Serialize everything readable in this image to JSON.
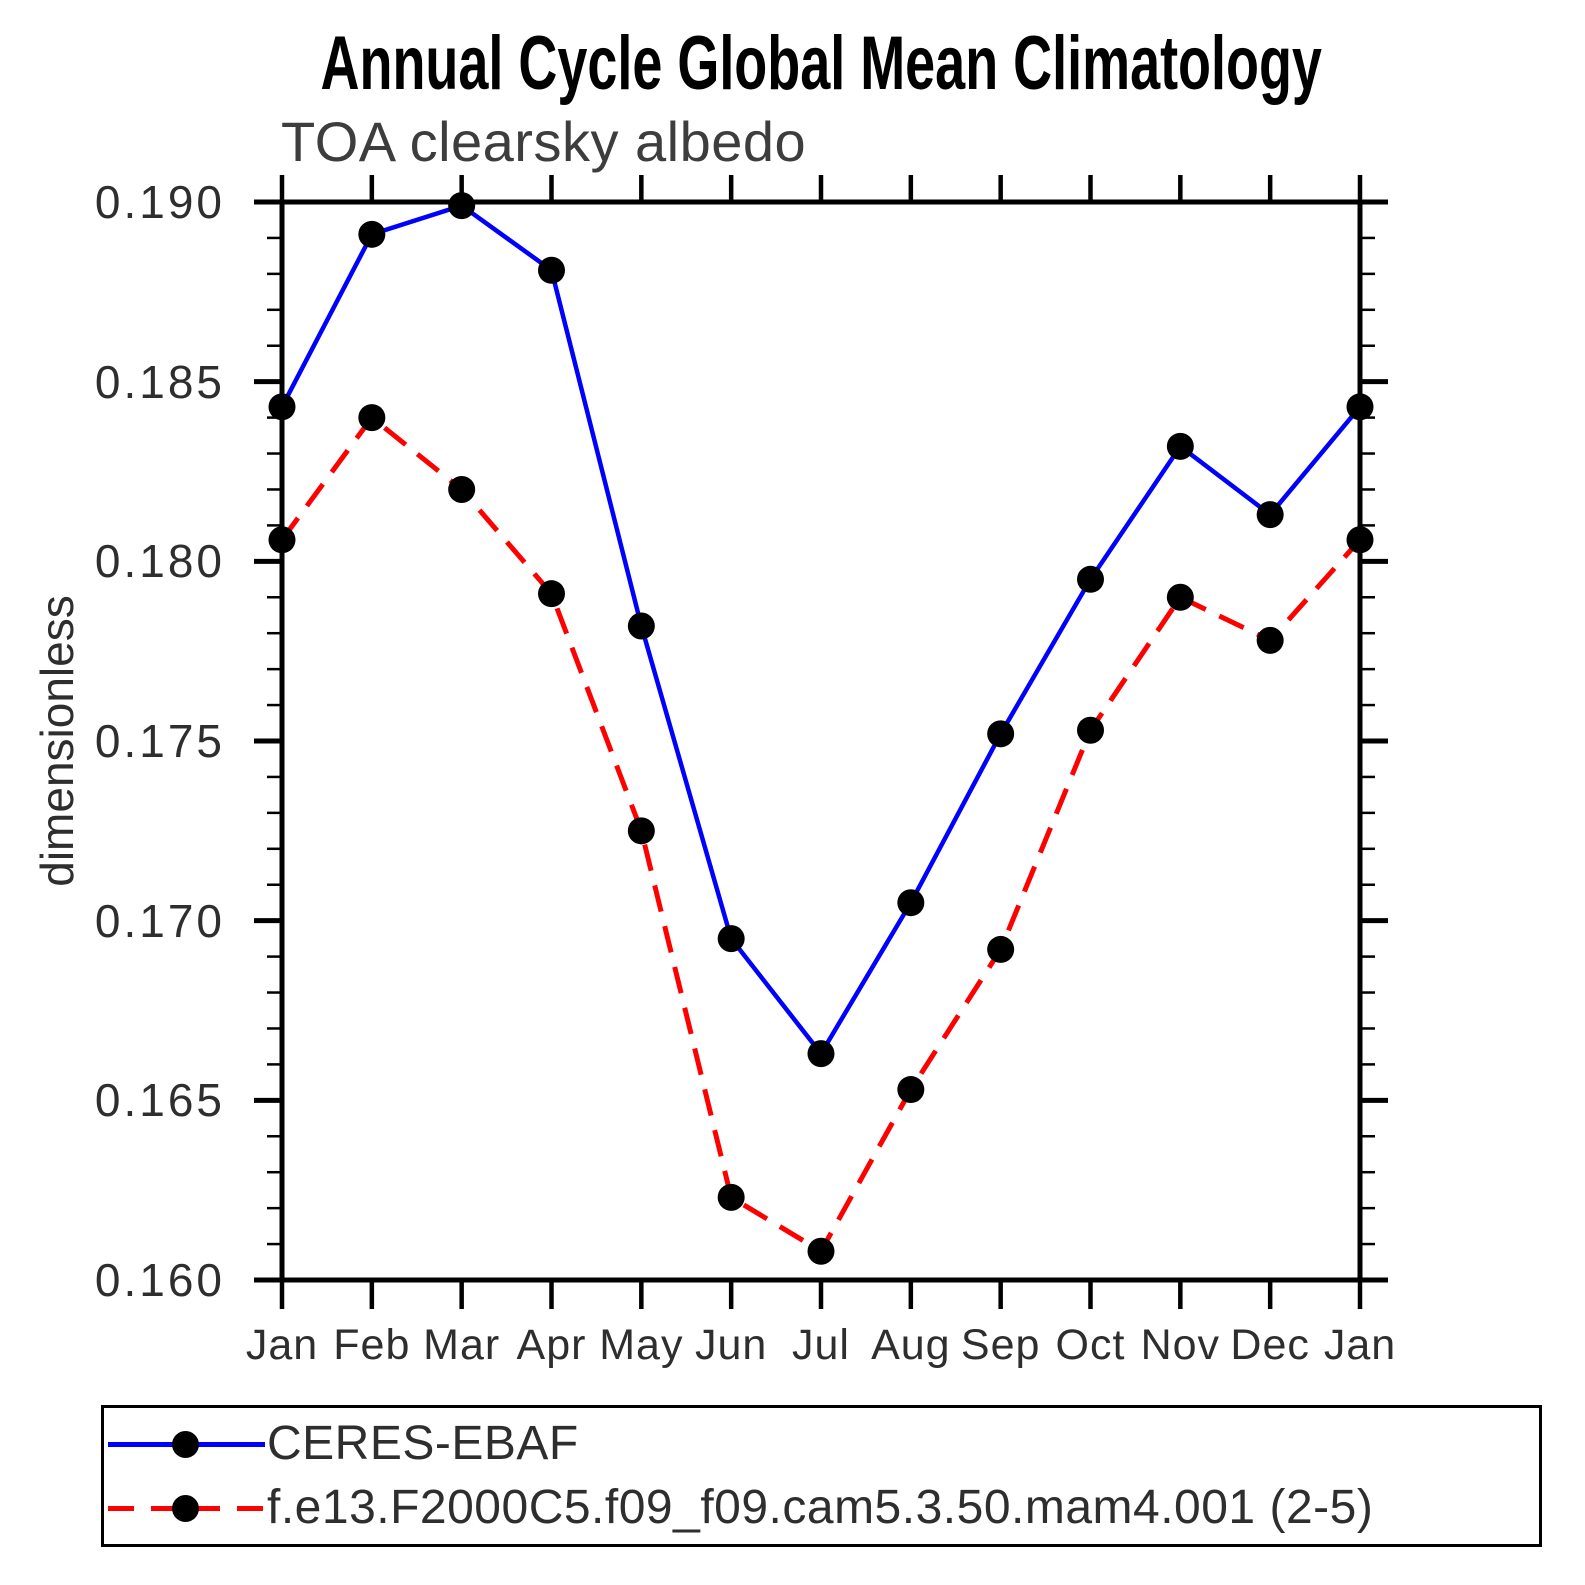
{
  "chart_data": {
    "type": "line",
    "title": "Annual Cycle Global Mean Climatology",
    "subtitle": "TOA clearsky albedo",
    "ylabel": "dimensionless",
    "x_categories": [
      "Jan",
      "Feb",
      "Mar",
      "Apr",
      "May",
      "Jun",
      "Jul",
      "Aug",
      "Sep",
      "Oct",
      "Nov",
      "Dec",
      "Jan"
    ],
    "ylim": [
      0.16,
      0.19
    ],
    "ytick_major_step": 0.005,
    "ytick_minor_step": 0.001,
    "ytick_labels": [
      "0.190",
      "0.185",
      "0.180",
      "0.175",
      "0.170",
      "0.165",
      "0.160"
    ],
    "grid": false,
    "legend_position": "bottom",
    "frame_color": "#000000",
    "marker_color": "#000000",
    "series": [
      {
        "name": "CERES-EBAF",
        "color": "#0000ff",
        "line_style": "solid",
        "marker": "filled-circle",
        "values": [
          0.1843,
          0.1891,
          0.1899,
          0.1881,
          0.1782,
          0.1695,
          0.1663,
          0.1705,
          0.1752,
          0.1795,
          0.1832,
          0.1813,
          0.1843
        ]
      },
      {
        "name": "f.e13.F2000C5.f09_f09.cam5.3.50.mam4.001 (2-5)",
        "color": "#ff0000",
        "line_style": "dashed",
        "marker": "filled-circle",
        "values": [
          0.1806,
          0.184,
          0.182,
          0.1791,
          0.1725,
          0.1623,
          0.1608,
          0.1653,
          0.1692,
          0.1753,
          0.179,
          0.1778,
          0.1806
        ]
      }
    ]
  }
}
